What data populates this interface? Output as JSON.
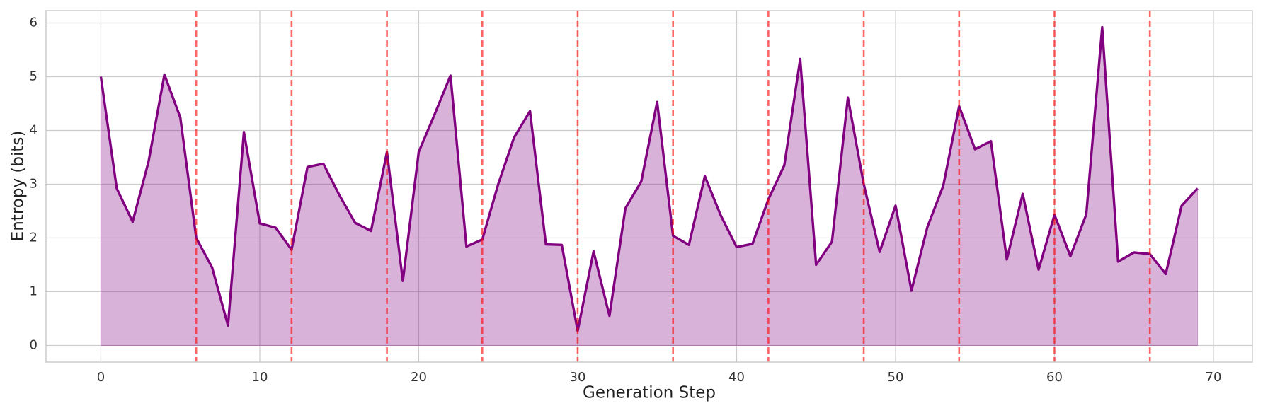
{
  "chart_data": {
    "type": "line",
    "x_label": "Generation Step",
    "y_label": "Entropy (bits)",
    "x": [
      0,
      1,
      2,
      3,
      4,
      5,
      6,
      7,
      8,
      9,
      10,
      11,
      12,
      13,
      14,
      15,
      16,
      17,
      18,
      19,
      20,
      21,
      22,
      23,
      24,
      25,
      26,
      27,
      28,
      29,
      30,
      31,
      32,
      33,
      34,
      35,
      36,
      37,
      38,
      39,
      40,
      41,
      42,
      43,
      44,
      45,
      46,
      47,
      48,
      49,
      50,
      51,
      52,
      53,
      54,
      55,
      56,
      57,
      58,
      59,
      60,
      61,
      62,
      63,
      64,
      65,
      66,
      67,
      68,
      69
    ],
    "series": [
      {
        "color": "#800080",
        "fill": true,
        "values": [
          5.0,
          2.92,
          2.3,
          3.42,
          5.04,
          4.24,
          2.0,
          1.45,
          0.37,
          3.97,
          2.27,
          2.19,
          1.78,
          3.32,
          3.38,
          2.8,
          2.28,
          2.13,
          3.6,
          1.2,
          3.6,
          4.3,
          5.02,
          1.84,
          1.97,
          3.0,
          3.87,
          4.36,
          1.88,
          1.87,
          0.27,
          1.75,
          0.55,
          2.55,
          3.05,
          4.53,
          2.04,
          1.87,
          3.15,
          2.42,
          1.83,
          1.89,
          2.72,
          3.35,
          5.33,
          1.5,
          1.93,
          4.61,
          3.0,
          1.74,
          2.6,
          1.02,
          2.2,
          2.97,
          4.45,
          3.65,
          3.8,
          1.6,
          2.82,
          1.41,
          2.43,
          1.66,
          2.44,
          5.92,
          1.56,
          1.73,
          1.7,
          1.33,
          2.6,
          2.92
        ]
      }
    ],
    "vlines": [
      6,
      12,
      18,
      24,
      30,
      36,
      42,
      48,
      54,
      60,
      66
    ],
    "vline_color": "#ff0000",
    "xlim": [
      -3.45,
      72.45
    ],
    "xticks": [
      0,
      10,
      20,
      30,
      40,
      50,
      60,
      70
    ],
    "ylim": [
      -0.31,
      6.23
    ],
    "yticks": [
      0,
      1,
      2,
      3,
      4,
      5,
      6
    ],
    "grid": true
  }
}
